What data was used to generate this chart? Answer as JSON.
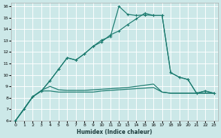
{
  "xlabel": "Humidex (Indice chaleur)",
  "background_color": "#cce8e8",
  "grid_color": "#ffffff",
  "line_color": "#1a7a6e",
  "xlim": [
    -0.5,
    23.5
  ],
  "ylim": [
    6,
    16.3
  ],
  "xticks": [
    0,
    1,
    2,
    3,
    4,
    5,
    6,
    7,
    8,
    9,
    10,
    11,
    12,
    13,
    14,
    15,
    16,
    17,
    18,
    19,
    20,
    21,
    22,
    23
  ],
  "yticks": [
    6,
    7,
    8,
    9,
    10,
    11,
    12,
    13,
    14,
    15,
    16
  ],
  "line1_x": [
    0,
    1,
    2,
    3,
    4,
    5,
    6,
    7,
    8,
    9,
    10,
    11,
    12,
    13,
    14,
    15,
    16,
    17,
    18,
    19,
    20,
    21,
    22,
    23
  ],
  "line1_y": [
    6.0,
    7.0,
    8.1,
    8.6,
    9.5,
    10.5,
    11.5,
    11.3,
    11.85,
    12.5,
    13.05,
    13.35,
    16.0,
    15.3,
    15.2,
    15.25,
    15.2,
    15.2,
    10.2,
    9.8,
    9.6,
    8.4,
    8.6,
    8.4
  ],
  "line2_x": [
    0,
    2,
    3,
    4,
    5,
    6,
    7,
    8,
    9,
    10,
    11,
    12,
    13,
    14,
    15,
    16,
    17,
    18,
    19,
    20,
    21,
    22,
    23
  ],
  "line2_y": [
    6.0,
    8.1,
    8.6,
    9.5,
    10.5,
    11.5,
    11.3,
    11.85,
    12.5,
    12.9,
    13.5,
    13.85,
    14.4,
    14.9,
    15.4,
    15.2,
    15.2,
    10.2,
    9.8,
    9.6,
    8.4,
    8.6,
    8.4
  ],
  "line3_x": [
    0,
    2,
    3,
    4,
    5,
    6,
    7,
    8,
    9,
    10,
    11,
    12,
    13,
    14,
    15,
    16,
    17,
    18,
    19,
    20,
    21,
    22,
    23
  ],
  "line3_y": [
    6.0,
    8.1,
    8.6,
    8.6,
    8.5,
    8.5,
    8.5,
    8.5,
    8.5,
    8.6,
    8.65,
    8.7,
    8.75,
    8.8,
    8.85,
    8.9,
    8.5,
    8.4,
    8.4,
    8.4,
    8.4,
    8.4,
    8.4
  ],
  "line4_x": [
    0,
    2,
    3,
    4,
    5,
    6,
    7,
    8,
    9,
    10,
    11,
    12,
    13,
    14,
    15,
    16,
    17,
    18,
    19,
    20,
    21,
    22,
    23
  ],
  "line4_y": [
    6.0,
    8.1,
    8.65,
    9.0,
    8.7,
    8.65,
    8.65,
    8.65,
    8.7,
    8.75,
    8.8,
    8.85,
    8.9,
    9.0,
    9.1,
    9.2,
    8.5,
    8.4,
    8.4,
    8.4,
    8.4,
    8.4,
    8.4
  ]
}
